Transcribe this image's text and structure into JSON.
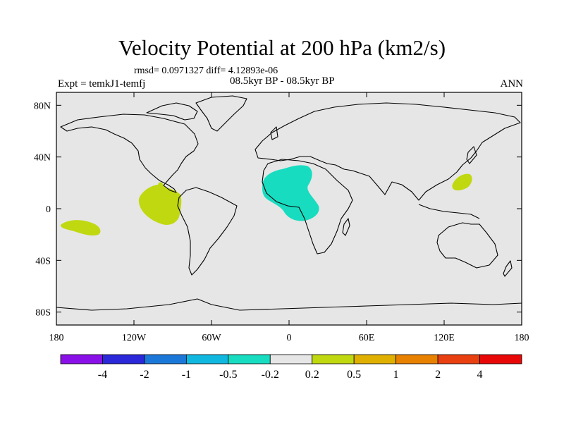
{
  "title": "Velocity Potential at 200 hPa (km2/s)",
  "stats": "rmsd= 0.0971327 diff= 4.12893e-06",
  "left_label": "Expt = temkJ1-temfj",
  "center_label": "08.5kyr BP - 08.5kyr BP",
  "right_label": "ANN",
  "map": {
    "ocean_color": "#e6e6e6",
    "lon_range": [
      -180,
      180
    ],
    "lat_range": [
      -90,
      90
    ],
    "x_ticks": [
      {
        "lon": -180,
        "label": "180"
      },
      {
        "lon": -120,
        "label": "120W"
      },
      {
        "lon": -60,
        "label": "60W"
      },
      {
        "lon": 0,
        "label": "0"
      },
      {
        "lon": 60,
        "label": "60E"
      },
      {
        "lon": 120,
        "label": "120E"
      },
      {
        "lon": 180,
        "label": "180"
      }
    ],
    "y_ticks": [
      {
        "lat": 80,
        "label": "80N"
      },
      {
        "lat": 40,
        "label": "40N"
      },
      {
        "lat": 0,
        "label": "0"
      },
      {
        "lat": -40,
        "label": "40S"
      },
      {
        "lat": -80,
        "label": "80S"
      }
    ],
    "anomalies": [
      {
        "name": "central-pacific-positive",
        "level": "0.2 to 0.5",
        "color": "#c0d810"
      },
      {
        "name": "eastern-pacific-positive",
        "level": "0.2 to 0.5",
        "color": "#c0d810"
      },
      {
        "name": "atlantic-africa-negative",
        "level": "-0.5 to -0.2",
        "color": "#18dcc0"
      },
      {
        "name": "western-pacific-positive",
        "level": "0.2 to 0.5",
        "color": "#c0d810"
      }
    ]
  },
  "colorbar": {
    "colors": [
      "#8a10e8",
      "#2a28d8",
      "#1c78d8",
      "#10b8e0",
      "#18dcc0",
      "#e6e6e6",
      "#c0d810",
      "#e0b000",
      "#e88000",
      "#e84010",
      "#e80808"
    ],
    "labels": [
      "-4",
      "-2",
      "-1",
      "-0.5",
      "-0.2",
      "0.2",
      "0.5",
      "1",
      "2",
      "4"
    ]
  }
}
